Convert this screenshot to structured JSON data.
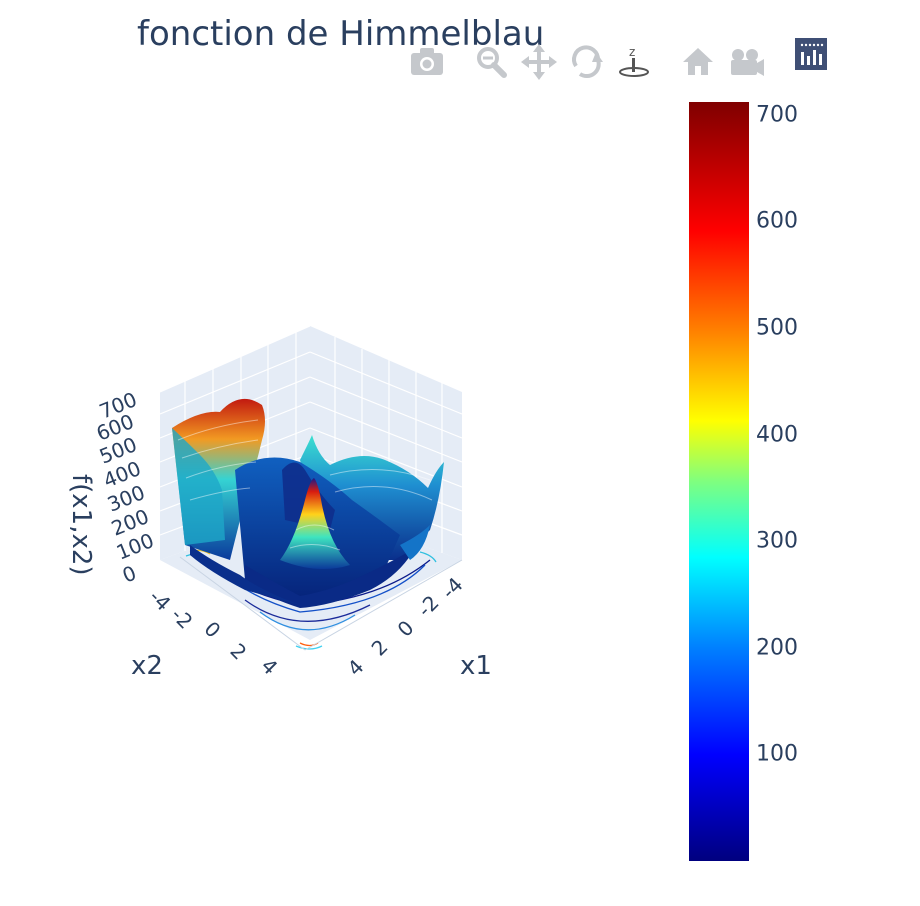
{
  "chart_data": {
    "type": "surface",
    "title": "fonction de Himmelblau",
    "xlabel": "x1",
    "ylabel": "x2",
    "zlabel": "f(x1,x2)",
    "x_ticks": [
      "-4",
      "-2",
      "0",
      "2",
      "4"
    ],
    "y_ticks": [
      "-4",
      "-2",
      "0",
      "2",
      "4"
    ],
    "z_ticks": [
      "0",
      "100",
      "200",
      "300",
      "400",
      "500",
      "600",
      "700"
    ],
    "colorscale": "jet",
    "colorbar_ticks": [
      "100",
      "200",
      "300",
      "400",
      "500",
      "600",
      "700"
    ],
    "colorbar_range": [
      0,
      712
    ]
  },
  "modebar": {
    "buttons": [
      "camera-icon",
      "zoom-icon",
      "pan-icon",
      "orbit-rotation-icon",
      "turntable-rotation-icon",
      "reset-camera-icon",
      "camera-movie-icon",
      "plotly-logo-icon"
    ]
  }
}
